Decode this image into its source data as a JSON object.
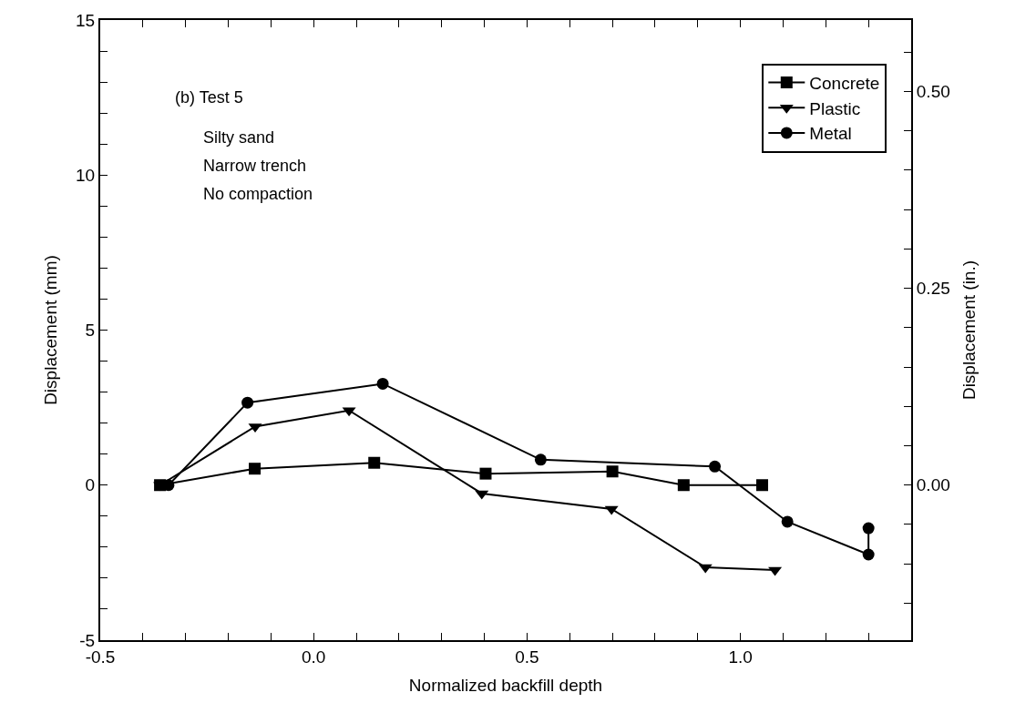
{
  "chart_data": {
    "type": "line",
    "xlabel": "Normalized backfill depth",
    "ylabel": "Displacement (mm)",
    "y2label": "Displacement (in.)",
    "annotations": [
      "(b) Test 5",
      "Silty sand",
      "Narrow trench",
      "No compaction"
    ],
    "series": [
      {
        "name": "Concrete",
        "color": "#000000",
        "marker": "square",
        "x": [
          -0.36,
          -0.138,
          0.142,
          0.403,
          0.7,
          0.867,
          1.051
        ],
        "values": [
          0,
          0.53,
          0.72,
          0.37,
          0.44,
          0,
          0
        ]
      },
      {
        "name": "Plastic",
        "color": "#000000",
        "marker": "triangle",
        "x": [
          -0.36,
          -0.137,
          0.083,
          0.394,
          0.698,
          0.918,
          1.081
        ],
        "values": [
          0,
          1.89,
          2.41,
          -0.27,
          -0.77,
          -2.65,
          -2.74
        ]
      },
      {
        "name": "Metal",
        "color": "#000000",
        "marker": "circle",
        "x": [
          -0.34,
          -0.155,
          0.162,
          0.532,
          0.94,
          1.11,
          1.3,
          1.3
        ],
        "values": [
          0,
          2.66,
          3.27,
          0.82,
          0.6,
          -1.18,
          -2.24,
          -1.39
        ]
      }
    ],
    "xlim": [
      -0.5,
      1.4
    ],
    "xticks": [
      {
        "value": -0.5,
        "label": "-0.5"
      },
      {
        "value": -0.4,
        "label": null
      },
      {
        "value": -0.3,
        "label": null
      },
      {
        "value": -0.2,
        "label": null
      },
      {
        "value": -0.1,
        "label": null
      },
      {
        "value": 0,
        "label": "0.0"
      },
      {
        "value": 0.1,
        "label": null
      },
      {
        "value": 0.2,
        "label": null
      },
      {
        "value": 0.3,
        "label": null
      },
      {
        "value": 0.4,
        "label": null
      },
      {
        "value": 0.5,
        "label": "0.5"
      },
      {
        "value": 0.6,
        "label": null
      },
      {
        "value": 0.7,
        "label": null
      },
      {
        "value": 0.8,
        "label": null
      },
      {
        "value": 0.9,
        "label": null
      },
      {
        "value": 1.0,
        "label": "1.0"
      },
      {
        "value": 1.1,
        "label": null
      },
      {
        "value": 1.2,
        "label": null
      },
      {
        "value": 1.3,
        "label": null
      }
    ],
    "ylim": [
      -5,
      15
    ],
    "yticks": [
      -5,
      {
        "value": -4,
        "label": null
      },
      {
        "value": -3,
        "label": null
      },
      {
        "value": -2,
        "label": null
      },
      {
        "value": -1,
        "label": null
      },
      0,
      {
        "value": 1,
        "label": null
      },
      {
        "value": 2,
        "label": null
      },
      {
        "value": 3,
        "label": null
      },
      {
        "value": 4,
        "label": null
      },
      5,
      {
        "value": 6,
        "label": null
      },
      {
        "value": 7,
        "label": null
      },
      {
        "value": 8,
        "label": null
      },
      {
        "value": 9,
        "label": null
      },
      10,
      {
        "value": 11,
        "label": null
      },
      {
        "value": 12,
        "label": null
      },
      {
        "value": 13,
        "label": null
      },
      {
        "value": 14,
        "label": null
      },
      15
    ],
    "y2lim": [
      -0.19685,
      0.59055
    ],
    "y2ticks": [
      {
        "value": -0.15,
        "label": null
      },
      {
        "value": -0.1,
        "label": null
      },
      {
        "value": -0.05,
        "label": null
      },
      {
        "value": 0,
        "label": "0.00"
      },
      {
        "value": 0.05,
        "label": null
      },
      {
        "value": 0.1,
        "label": null
      },
      {
        "value": 0.15,
        "label": null
      },
      {
        "value": 0.2,
        "label": null
      },
      {
        "value": 0.25,
        "label": "0.25"
      },
      {
        "value": 0.3,
        "label": null
      },
      {
        "value": 0.35,
        "label": null
      },
      {
        "value": 0.4,
        "label": null
      },
      {
        "value": 0.45,
        "label": null
      },
      {
        "value": 0.5,
        "label": "0.50"
      },
      {
        "value": 0.55,
        "label": null
      }
    ],
    "legend": "top right",
    "line_style": "solid"
  }
}
